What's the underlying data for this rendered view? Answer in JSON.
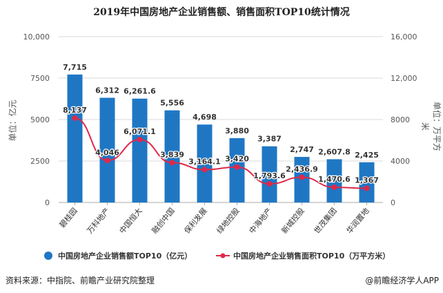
{
  "chart_data": {
    "type": "bar+line",
    "title": "2019年中国房地产企业销售额、销售面积TOP10统计情况",
    "categories": [
      "碧桂园",
      "万科地产",
      "中国恒大",
      "融创中国",
      "保利发展",
      "绿地控股",
      "中海地产",
      "新城控股",
      "世茂集团",
      "华润置地"
    ],
    "series": [
      {
        "name": "中国房地产企业销售额TOP10（亿元）",
        "type": "bar",
        "axis": "left",
        "values": [
          7715,
          6312,
          6261.6,
          5556,
          4698,
          3880,
          3387,
          2747,
          2607.8,
          2425
        ],
        "labels": [
          "7,715",
          "6,312",
          "6,261.6",
          "5,556",
          "4,698",
          "3,880",
          "3,387",
          "2,747",
          "2,607.8",
          "2,425"
        ],
        "color": "#1f77c4"
      },
      {
        "name": "中国房地产企业销售面积TOP10（万平方米）",
        "type": "line",
        "axis": "right",
        "values": [
          8137,
          4046,
          6071.1,
          3839,
          3164.1,
          3420,
          1793.6,
          2436.9,
          1470.6,
          1367
        ],
        "labels": [
          "8,137",
          "4,046",
          "6,071.1",
          "3,839",
          "3,164.1",
          "3,420",
          "1,793.6",
          "2,436.9",
          "1,470.6",
          "1,367"
        ],
        "color": "#e0284a"
      }
    ],
    "ylabel_left": "单位：亿元",
    "ylabel_right": "单位：万平方米",
    "ylim_left": [
      0,
      10000
    ],
    "ylim_right": [
      0,
      16000
    ],
    "yticks_left": [
      "0",
      "2500",
      "5000",
      "7500",
      "10,000"
    ],
    "yticks_right": [
      "0",
      "4000",
      "8000",
      "12,000",
      "16,000"
    ],
    "grid": true,
    "legend": "bottom"
  },
  "footer": {
    "source": "资料来源：中指院、前瞻产业研究院整理",
    "credit": "@前瞻经济学人APP"
  }
}
